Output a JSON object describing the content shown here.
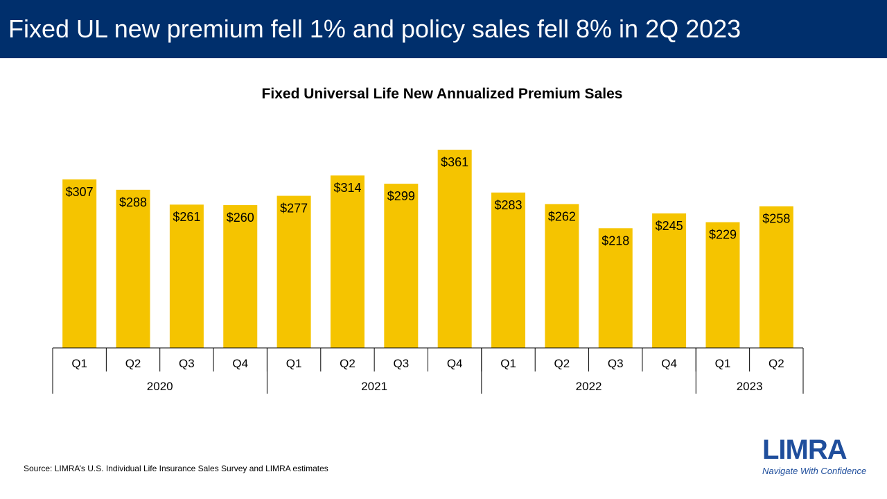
{
  "header": {
    "title": "Fixed UL new premium fell 1% and policy sales fell 8% in 2Q 2023"
  },
  "source": "Source: LIMRA’s U.S. Individual Life Insurance Sales Survey and LIMRA estimates",
  "logo": {
    "name": "LIMRA",
    "tagline": "Navigate With Confidence"
  },
  "colors": {
    "header_bg": "#002f6c",
    "bar": "#f5c400",
    "logo": "#1f4e9c"
  },
  "chart_data": {
    "type": "bar",
    "title": "Fixed Universal Life New Annualized Premium Sales",
    "categories": [
      "Q1",
      "Q2",
      "Q3",
      "Q4",
      "Q1",
      "Q2",
      "Q3",
      "Q4",
      "Q1",
      "Q2",
      "Q3",
      "Q4",
      "Q1",
      "Q2"
    ],
    "years": [
      {
        "label": "2020",
        "count": 4
      },
      {
        "label": "2021",
        "count": 4
      },
      {
        "label": "2022",
        "count": 4
      },
      {
        "label": "2023",
        "count": 2
      }
    ],
    "values": [
      307,
      288,
      261,
      260,
      277,
      314,
      299,
      361,
      283,
      262,
      218,
      245,
      229,
      258
    ],
    "value_labels": [
      "$307",
      "$288",
      "$261",
      "$260",
      "$277",
      "$314",
      "$299",
      "$361",
      "$283",
      "$262",
      "$218",
      "$245",
      "$229",
      "$258"
    ],
    "ylim": [
      0,
      400
    ],
    "grid": false,
    "legend": "none"
  }
}
